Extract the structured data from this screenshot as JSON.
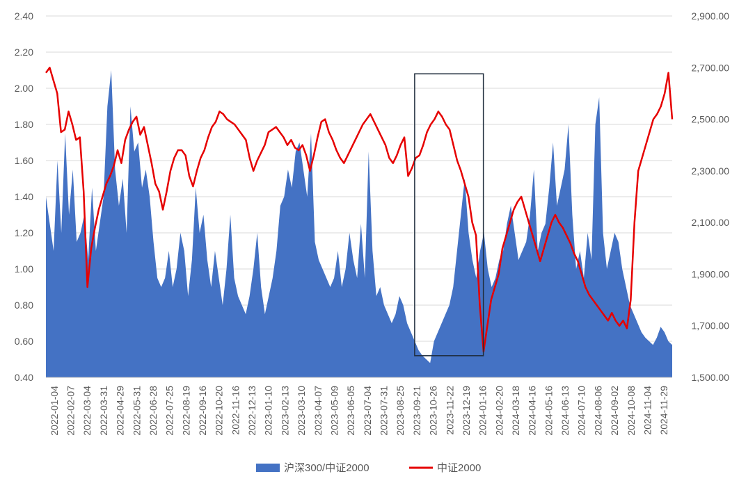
{
  "chart_data": {
    "type": "area",
    "title": "",
    "grid": "horizontal",
    "legend_position": "bottom",
    "x_tick_labels": [
      "2022-01-04",
      "2022-02-07",
      "2022-03-04",
      "2022-03-31",
      "2022-04-29",
      "2022-05-31",
      "2022-06-28",
      "2022-07-25",
      "2022-08-19",
      "2022-09-16",
      "2022-10-20",
      "2022-11-16",
      "2022-12-13",
      "2023-01-10",
      "2023-02-13",
      "2023-03-10",
      "2023-04-07",
      "2023-05-09",
      "2023-06-05",
      "2023-07-04",
      "2023-07-31",
      "2023-08-25",
      "2023-09-21",
      "2023-10-26",
      "2023-11-22",
      "2023-12-19",
      "2024-01-16",
      "2024-02-20",
      "2024-03-18",
      "2024-04-16",
      "2024-05-16",
      "2024-06-13",
      "2024-07-10",
      "2024-08-06",
      "2024-09-02",
      "2024-10-08",
      "2024-11-04",
      "2024-11-29"
    ],
    "y_left": {
      "min": 0.4,
      "max": 2.4,
      "ticks": [
        "0.40",
        "0.60",
        "0.80",
        "1.00",
        "1.20",
        "1.40",
        "1.60",
        "1.80",
        "2.00",
        "2.20",
        "2.40"
      ]
    },
    "y_right": {
      "min": 1500,
      "max": 2900,
      "ticks": [
        "1,500.00",
        "1,700.00",
        "1,900.00",
        "2,100.00",
        "2,300.00",
        "2,500.00",
        "2,700.00",
        "2,900.00"
      ]
    },
    "series": [
      {
        "name": "沪深300/中证2000",
        "type": "area",
        "axis": "left",
        "color": "#4472C4",
        "values": [
          1.4,
          1.25,
          1.1,
          1.6,
          1.2,
          1.75,
          1.3,
          1.55,
          1.15,
          1.2,
          1.3,
          1.05,
          1.45,
          1.1,
          1.25,
          1.4,
          1.9,
          2.1,
          1.55,
          1.35,
          1.5,
          1.2,
          1.9,
          1.65,
          1.7,
          1.45,
          1.55,
          1.4,
          1.15,
          0.95,
          0.9,
          0.95,
          1.1,
          0.9,
          1.0,
          1.2,
          1.1,
          0.85,
          1.05,
          1.45,
          1.2,
          1.3,
          1.05,
          0.9,
          1.1,
          0.95,
          0.8,
          1.0,
          1.3,
          0.95,
          0.85,
          0.8,
          0.75,
          0.85,
          1.0,
          1.2,
          0.9,
          0.75,
          0.85,
          0.95,
          1.1,
          1.35,
          1.4,
          1.55,
          1.45,
          1.65,
          1.7,
          1.55,
          1.4,
          1.75,
          1.15,
          1.05,
          1.0,
          0.95,
          0.9,
          0.95,
          1.1,
          0.9,
          1.0,
          1.2,
          1.05,
          0.95,
          1.25,
          0.95,
          1.65,
          1.1,
          0.85,
          0.9,
          0.8,
          0.75,
          0.7,
          0.75,
          0.85,
          0.8,
          0.7,
          0.65,
          0.6,
          0.55,
          0.52,
          0.5,
          0.48,
          0.6,
          0.65,
          0.7,
          0.75,
          0.8,
          0.9,
          1.1,
          1.3,
          1.5,
          1.2,
          1.05,
          0.95,
          1.1,
          1.2,
          1.0,
          0.9,
          0.95,
          1.05,
          1.1,
          1.25,
          1.35,
          1.2,
          1.05,
          1.1,
          1.15,
          1.3,
          1.55,
          1.1,
          1.2,
          1.25,
          1.45,
          1.7,
          1.35,
          1.45,
          1.55,
          1.8,
          1.3,
          1.0,
          1.1,
          0.95,
          1.2,
          1.05,
          1.8,
          1.95,
          1.2,
          1.0,
          1.1,
          1.2,
          1.15,
          1.0,
          0.9,
          0.8,
          0.75,
          0.7,
          0.65,
          0.62,
          0.6,
          0.58,
          0.62,
          0.68,
          0.65,
          0.6,
          0.58
        ]
      },
      {
        "name": "中证2000",
        "type": "line",
        "axis": "right",
        "color": "#E60000",
        "values": [
          2680,
          2700,
          2650,
          2600,
          2450,
          2460,
          2530,
          2480,
          2420,
          2430,
          2220,
          1850,
          2000,
          2080,
          2150,
          2200,
          2250,
          2280,
          2320,
          2380,
          2330,
          2420,
          2460,
          2490,
          2510,
          2440,
          2470,
          2400,
          2330,
          2250,
          2220,
          2150,
          2220,
          2300,
          2350,
          2380,
          2380,
          2360,
          2280,
          2240,
          2300,
          2350,
          2380,
          2430,
          2470,
          2490,
          2530,
          2520,
          2500,
          2490,
          2480,
          2460,
          2440,
          2420,
          2350,
          2300,
          2340,
          2370,
          2400,
          2450,
          2460,
          2470,
          2450,
          2430,
          2400,
          2420,
          2390,
          2380,
          2400,
          2360,
          2300,
          2360,
          2430,
          2490,
          2500,
          2450,
          2420,
          2380,
          2350,
          2330,
          2360,
          2390,
          2420,
          2450,
          2480,
          2500,
          2520,
          2490,
          2460,
          2430,
          2400,
          2350,
          2330,
          2360,
          2400,
          2430,
          2280,
          2310,
          2350,
          2360,
          2400,
          2450,
          2480,
          2500,
          2530,
          2510,
          2480,
          2460,
          2400,
          2340,
          2300,
          2250,
          2200,
          2100,
          2050,
          1780,
          1600,
          1700,
          1800,
          1850,
          1900,
          2000,
          2050,
          2100,
          2150,
          2180,
          2200,
          2150,
          2100,
          2050,
          2000,
          1950,
          2000,
          2050,
          2100,
          2130,
          2100,
          2080,
          2050,
          2020,
          1980,
          1950,
          1900,
          1850,
          1820,
          1800,
          1780,
          1760,
          1740,
          1720,
          1750,
          1720,
          1700,
          1720,
          1690,
          1800,
          2100,
          2300,
          2350,
          2400,
          2450,
          2500,
          2520,
          2550,
          2600,
          2680,
          2500
        ]
      }
    ]
  },
  "legend": [
    {
      "label": "沪深300/中证2000",
      "color": "#4472C4",
      "swatch": "box"
    },
    {
      "label": "中证2000",
      "color": "#E60000",
      "swatch": "line"
    }
  ],
  "annotation": {
    "kind": "highlight-box",
    "x_from": "2023-09-21",
    "x_to": "2024-01-16",
    "y_from": 0.52,
    "y_to": 2.08,
    "color": "#1F2D3D"
  }
}
